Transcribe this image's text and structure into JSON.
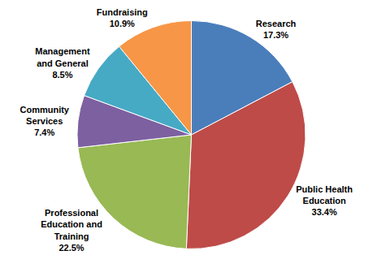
{
  "chart_data": {
    "type": "pie",
    "categories": [
      "Research",
      "Public Health Education",
      "Professional Education and Training",
      "Community Services",
      "Management and General",
      "Fundraising"
    ],
    "values": [
      17.3,
      33.4,
      22.5,
      7.4,
      8.5,
      10.9
    ],
    "value_labels": [
      "17.3%",
      "33.4%",
      "22.5%",
      "7.4%",
      "8.5%",
      "10.9%"
    ],
    "colors": [
      "#4a7ebb",
      "#be4b48",
      "#98b954",
      "#7d60a0",
      "#46aac5",
      "#f79646"
    ],
    "data_labels": true
  }
}
